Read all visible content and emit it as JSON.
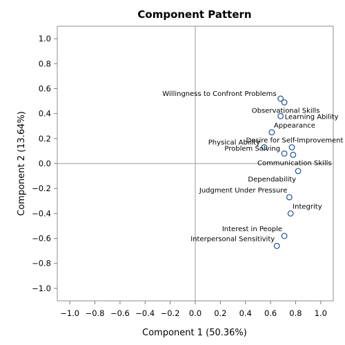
{
  "chart_data": {
    "type": "scatter",
    "title": "Component Pattern",
    "xlabel": "Component 1 (50.36%)",
    "ylabel": "Component 2 (13.64%)",
    "xlim": [
      -1.1,
      1.1
    ],
    "ylim": [
      -1.1,
      1.1
    ],
    "xticks": [
      -1.0,
      -0.8,
      -0.6,
      -0.4,
      -0.2,
      0.0,
      0.2,
      0.4,
      0.6,
      0.8,
      1.0
    ],
    "yticks": [
      -1.0,
      -0.8,
      -0.6,
      -0.4,
      -0.2,
      0.0,
      0.2,
      0.4,
      0.6,
      0.8,
      1.0
    ],
    "xtick_labels": [
      "−1.0",
      "−0.8",
      "−0.6",
      "−0.4",
      "−0.2",
      "0.0",
      "0.2",
      "0.4",
      "0.6",
      "0.8",
      "1.0"
    ],
    "ytick_labels": [
      "−1.0",
      "−0.8",
      "−0.6",
      "−0.4",
      "−0.2",
      "0.0",
      "0.2",
      "0.4",
      "0.6",
      "0.8",
      "1.0"
    ],
    "reference_lines": {
      "x": 0,
      "y": 0
    },
    "grid": false,
    "legend": "none",
    "marker_color": "#1f4e9c",
    "points": [
      {
        "label": "Willingness to Confront Problems",
        "x": 0.68,
        "y": 0.52,
        "label_pos": "left"
      },
      {
        "label": "Observational Skills",
        "x": 0.71,
        "y": 0.49,
        "label_pos": "below"
      },
      {
        "label": "Learning Ability",
        "x": 0.68,
        "y": 0.38,
        "label_pos": "right"
      },
      {
        "label": "Appearance",
        "x": 0.61,
        "y": 0.25,
        "label_pos": "above-right"
      },
      {
        "label": "Desire for Self-Improvement",
        "x": 0.77,
        "y": 0.13,
        "label_pos": "above"
      },
      {
        "label": "Physical Ability",
        "x": 0.55,
        "y": 0.13,
        "label_pos": "left"
      },
      {
        "label": "Problem Solving",
        "x": 0.71,
        "y": 0.08,
        "label_pos": "left"
      },
      {
        "label": "Communication Skills",
        "x": 0.78,
        "y": 0.07,
        "label_pos": "below"
      },
      {
        "label": "Dependability",
        "x": 0.82,
        "y": -0.06,
        "label_pos": "below-left"
      },
      {
        "label": "Judgment Under Pressure",
        "x": 0.75,
        "y": -0.27,
        "label_pos": "above-left"
      },
      {
        "label": "Integrity",
        "x": 0.76,
        "y": -0.4,
        "label_pos": "above-right"
      },
      {
        "label": "Interest in People",
        "x": 0.71,
        "y": -0.58,
        "label_pos": "above-left"
      },
      {
        "label": "Interpersonal Sensitivity",
        "x": 0.65,
        "y": -0.66,
        "label_pos": "above-left"
      }
    ]
  }
}
